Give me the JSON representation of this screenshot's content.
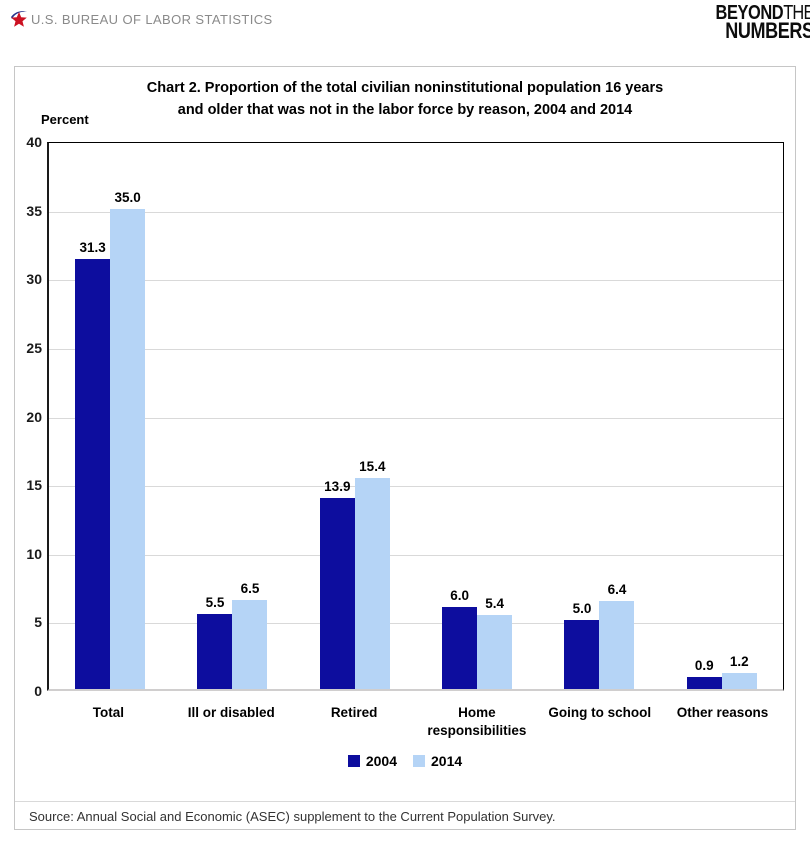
{
  "header": {
    "agency": "U.S. BUREAU OF LABOR STATISTICS"
  },
  "brand": {
    "line1_bold": "BEYOND",
    "line1_light": "THE",
    "line2": "NUMBERS"
  },
  "chart_data": {
    "type": "bar",
    "title_line1": "Chart 2.  Proportion of the total civilian noninstitutional population 16 years",
    "title_line2": "and older that was not in the labor force by reason, 2004 and 2014",
    "ylabel": "Percent",
    "ylim": [
      0,
      40
    ],
    "ytick_step": 5,
    "grid": true,
    "legend_position": "bottom",
    "categories": [
      "Total",
      "Ill or disabled",
      "Retired",
      "Home responsibilities",
      "Going to school",
      "Other reasons"
    ],
    "series": [
      {
        "name": "2004",
        "color": "#0d0d9e",
        "values": [
          31.3,
          5.5,
          13.9,
          6.0,
          5.0,
          0.9
        ]
      },
      {
        "name": "2014",
        "color": "#b5d4f6",
        "values": [
          35.0,
          6.5,
          15.4,
          5.4,
          6.4,
          1.2
        ]
      }
    ],
    "value_label_decimals": 1
  },
  "colors": {
    "star_red": "#cc1122",
    "star_blue": "#27348b",
    "gridline": "#d9d9d9"
  },
  "source": "Source: Annual Social and Economic (ASEC) supplement to the Current Population Survey."
}
